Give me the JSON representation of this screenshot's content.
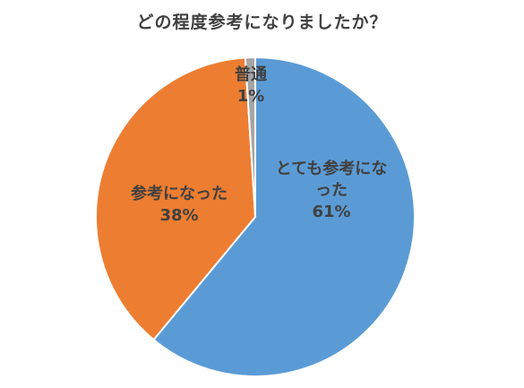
{
  "chart_data": {
    "type": "pie",
    "title": "どの程度参考になりましたか？",
    "categories": [
      "とても参考になった",
      "参考になった",
      "普通"
    ],
    "values": [
      61,
      38,
      1
    ],
    "value_labels": [
      "61%",
      "38%",
      "1%"
    ],
    "colors": [
      "#5B9BD5",
      "#ED7D31",
      "#A5A5A5"
    ],
    "legend": "none",
    "start_angle": "12 o'clock",
    "direction": "clockwise"
  }
}
